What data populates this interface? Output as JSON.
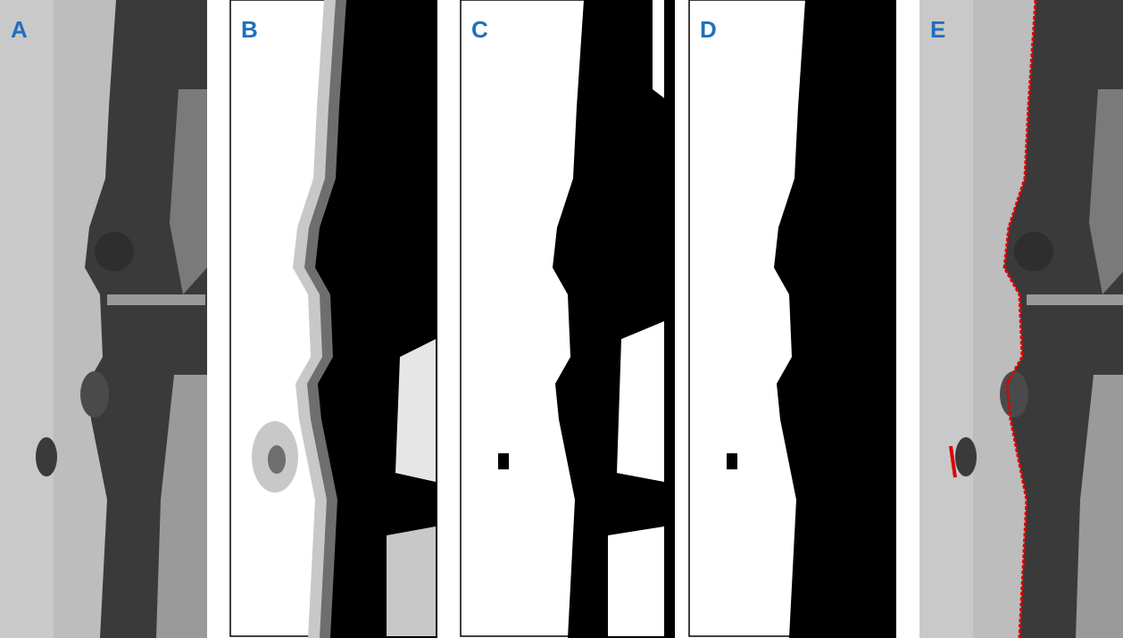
{
  "panels": [
    {
      "label": "A"
    },
    {
      "label": "B"
    },
    {
      "label": "C"
    },
    {
      "label": "D"
    },
    {
      "label": "E"
    }
  ]
}
